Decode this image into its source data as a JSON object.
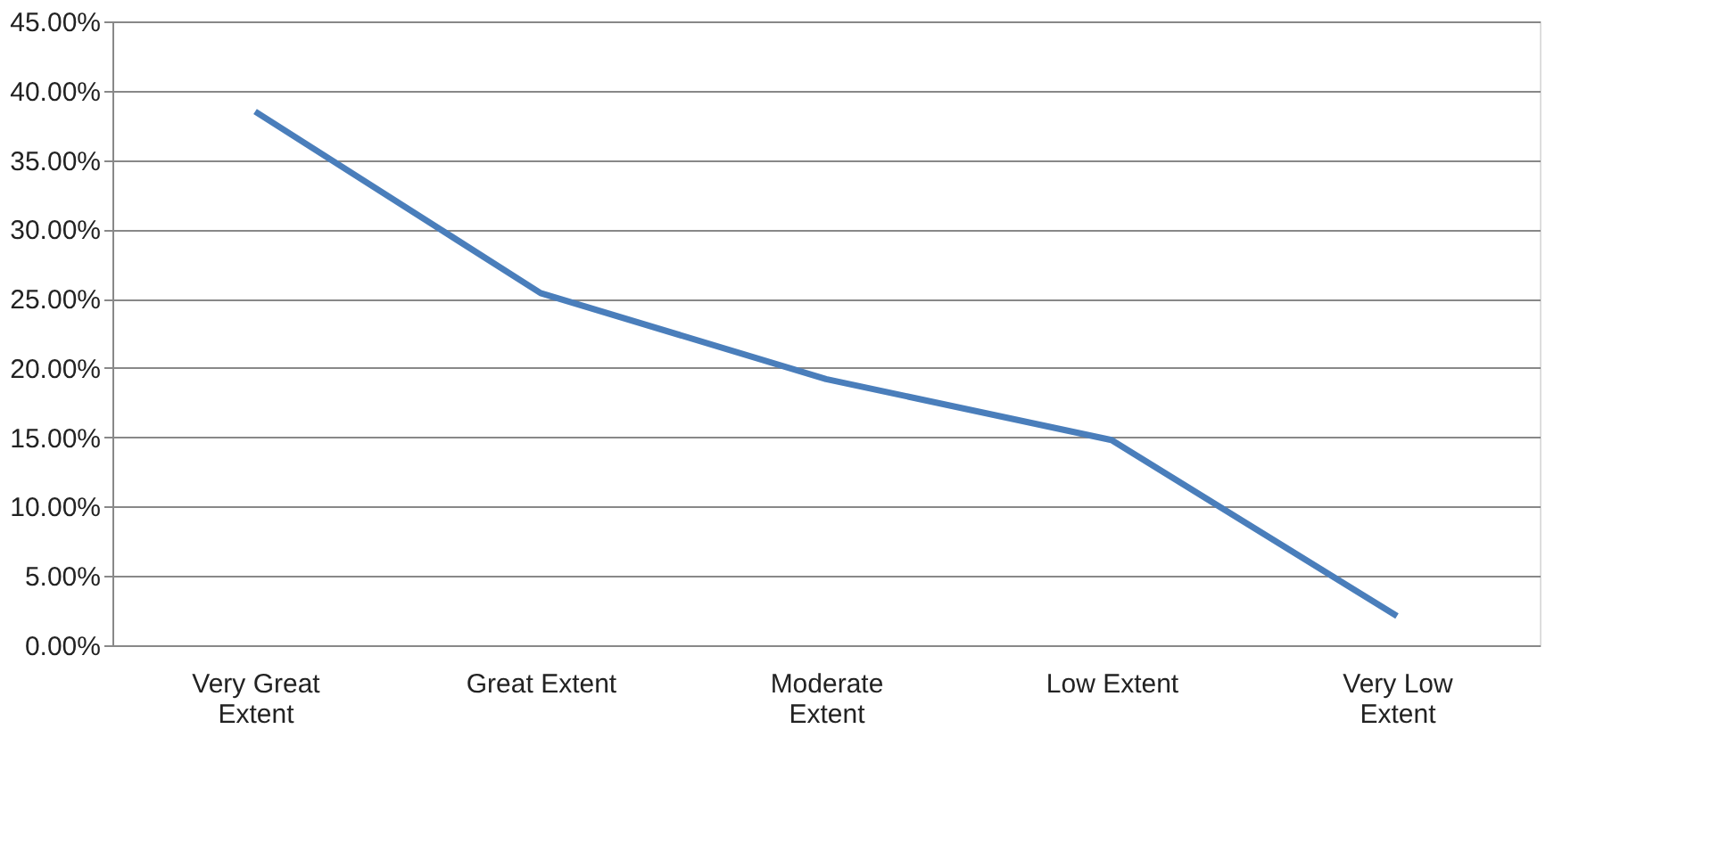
{
  "chart_data": {
    "type": "line",
    "categories": [
      "Very Great Extent",
      "Great Extent",
      "Moderate Extent",
      "Low Extent",
      "Very Low Extent"
    ],
    "series": [
      {
        "color": "#4a7ebb",
        "values": [
          38.5,
          25.4,
          19.2,
          14.8,
          2.1
        ]
      }
    ],
    "ylim": [
      0,
      45
    ],
    "yticks": [
      {
        "value": 0,
        "label": "0.00%"
      },
      {
        "value": 5,
        "label": "5.00%"
      },
      {
        "value": 10,
        "label": "10.00%"
      },
      {
        "value": 15,
        "label": "15.00%"
      },
      {
        "value": 20,
        "label": "20.00%"
      },
      {
        "value": 25,
        "label": "25.00%"
      },
      {
        "value": 30,
        "label": "30.00%"
      },
      {
        "value": 35,
        "label": "35.00%"
      },
      {
        "value": 40,
        "label": "40.00%"
      },
      {
        "value": 45,
        "label": "45.00%"
      }
    ],
    "grid": "y",
    "legend": false,
    "marker": "none",
    "line_style": "solid"
  }
}
